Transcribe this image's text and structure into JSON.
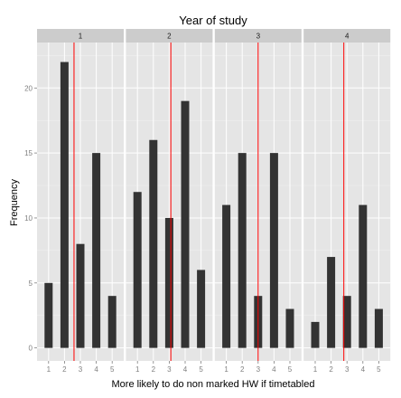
{
  "chart_data": {
    "type": "bar",
    "title": "Year of study",
    "xlabel": "More likely to do non marked HW if timetabled",
    "ylabel": "Frequency",
    "categories": [
      "1",
      "2",
      "3",
      "4",
      "5"
    ],
    "ylim": [
      -1,
      23.5
    ],
    "yticks": [
      0,
      5,
      10,
      15,
      20
    ],
    "grid": true,
    "panels": [
      {
        "label": "1",
        "values": [
          5,
          22,
          8,
          15,
          4
        ],
        "mean_line": 2.6
      },
      {
        "label": "2",
        "values": [
          12,
          16,
          10,
          19,
          6
        ],
        "mean_line": 3.1
      },
      {
        "label": "3",
        "values": [
          11,
          15,
          4,
          15,
          3
        ],
        "mean_line": 3.0
      },
      {
        "label": "4",
        "values": [
          2,
          7,
          4,
          11,
          3
        ],
        "mean_line": 2.8
      }
    ],
    "colors": {
      "bar": "#333333",
      "panel_bg": "#e5e5e5",
      "strip_bg": "#cccccc",
      "grid": "#ffffff",
      "mean_line": "#ff0000"
    }
  }
}
